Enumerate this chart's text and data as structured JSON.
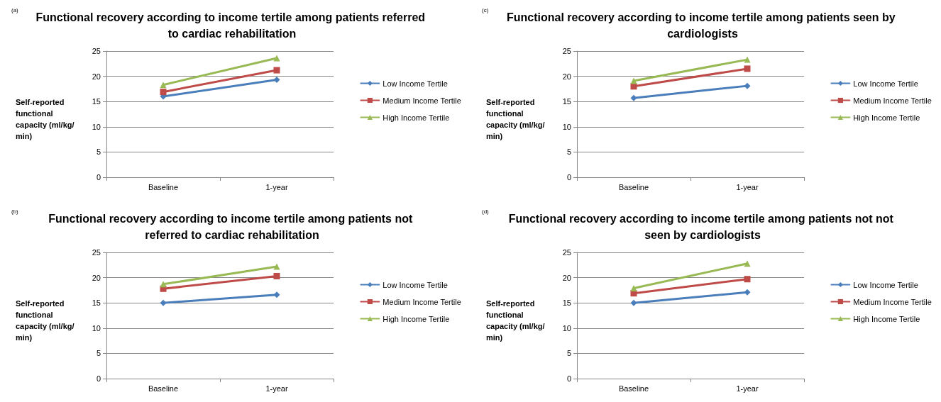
{
  "chart_data": [
    {
      "type": "line",
      "title": "Functional recovery according to income tertile among patients referred to cardiac rehabilitation",
      "ylabel": "Self-reported functional capacity (ml/kg/min)",
      "annotations": [
        "(a)"
      ],
      "categories": [
        "Baseline",
        "1-year"
      ],
      "ylim": [
        0,
        25
      ],
      "yticks": [
        0,
        5,
        10,
        15,
        20,
        25
      ],
      "grid": "y",
      "legend": "right",
      "series": [
        {
          "name": "Low Income Tertile",
          "color": "#4a7ebb",
          "marker": "diamond",
          "values": [
            16.0,
            19.3
          ]
        },
        {
          "name": "Medium Income Tertile",
          "color": "#be4b48",
          "marker": "square",
          "values": [
            16.9,
            21.2
          ]
        },
        {
          "name": "High Income Tertile",
          "color": "#98b954",
          "marker": "triangle",
          "values": [
            18.3,
            23.6
          ]
        }
      ]
    },
    {
      "type": "line",
      "title": "Functional recovery according to income tertile among patients not referred to cardiac rehabilitation",
      "ylabel": "Self-reported functional capacity (ml/kg/min)",
      "annotations": [
        "(b)"
      ],
      "categories": [
        "Baseline",
        "1-year"
      ],
      "ylim": [
        0,
        25
      ],
      "yticks": [
        0,
        5,
        10,
        15,
        20,
        25
      ],
      "grid": "y",
      "legend": "right",
      "series": [
        {
          "name": "Low Income Tertile",
          "color": "#4a7ebb",
          "marker": "diamond",
          "values": [
            15.0,
            16.6
          ]
        },
        {
          "name": "Medium Income Tertile",
          "color": "#be4b48",
          "marker": "square",
          "values": [
            17.8,
            20.3
          ]
        },
        {
          "name": "High Income Tertile",
          "color": "#98b954",
          "marker": "triangle",
          "values": [
            18.7,
            22.2
          ]
        }
      ]
    },
    {
      "type": "line",
      "title": "Functional recovery according to income tertile among patients seen by cardiologists",
      "ylabel": "Self-reported functional capacity (ml/kg/min)",
      "annotations": [
        "(c)"
      ],
      "categories": [
        "Baseline",
        "1-year"
      ],
      "ylim": [
        0,
        25
      ],
      "yticks": [
        0,
        5,
        10,
        15,
        20,
        25
      ],
      "grid": "y",
      "legend": "right",
      "series": [
        {
          "name": "Low Income Tertile",
          "color": "#4a7ebb",
          "marker": "diamond",
          "values": [
            15.7,
            18.1
          ]
        },
        {
          "name": "Medium Income Tertile",
          "color": "#be4b48",
          "marker": "square",
          "values": [
            18.0,
            21.5
          ]
        },
        {
          "name": "High Income Tertile",
          "color": "#98b954",
          "marker": "triangle",
          "values": [
            19.1,
            23.3
          ]
        }
      ]
    },
    {
      "type": "line",
      "title": "Functional recovery according to income tertile among patients not not seen by cardiologists",
      "ylabel": "Self-reported functional capacity (ml/kg/min)",
      "annotations": [
        "(d)"
      ],
      "categories": [
        "Baseline",
        "1-year"
      ],
      "ylim": [
        0,
        25
      ],
      "yticks": [
        0,
        5,
        10,
        15,
        20,
        25
      ],
      "grid": "y",
      "legend": "right",
      "series": [
        {
          "name": "Low Income Tertile",
          "color": "#4a7ebb",
          "marker": "diamond",
          "values": [
            15.0,
            17.1
          ]
        },
        {
          "name": "Medium Income Tertile",
          "color": "#be4b48",
          "marker": "square",
          "values": [
            16.9,
            19.7
          ]
        },
        {
          "name": "High Income Tertile",
          "color": "#98b954",
          "marker": "triangle",
          "values": [
            17.9,
            22.8
          ]
        }
      ]
    }
  ]
}
